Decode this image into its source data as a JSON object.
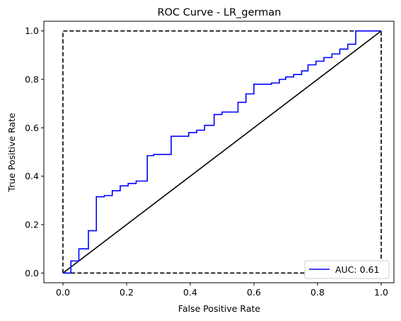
{
  "chart_data": {
    "type": "line",
    "title": "ROC Curve - LR_german",
    "xlabel": "False Positive Rate",
    "ylabel": "True Positive Rate",
    "xlim": [
      -0.06,
      1.04
    ],
    "ylim": [
      -0.04,
      1.04
    ],
    "x_ticks": [
      0.0,
      0.2,
      0.4,
      0.6,
      0.8,
      1.0
    ],
    "y_ticks": [
      0.0,
      0.2,
      0.4,
      0.6,
      0.8,
      1.0
    ],
    "x_tick_labels": [
      "0.0",
      "0.2",
      "0.4",
      "0.6",
      "0.8",
      "1.0"
    ],
    "y_tick_labels": [
      "0.0",
      "0.2",
      "0.4",
      "0.6",
      "0.8",
      "1.0"
    ],
    "grid": false,
    "legend_position": "lower right",
    "series": [
      {
        "name": "AUC: 0.61",
        "color": "#0000ff",
        "style": "solid",
        "x": [
          0.0,
          0.025,
          0.025,
          0.05,
          0.05,
          0.08,
          0.08,
          0.105,
          0.105,
          0.13,
          0.13,
          0.155,
          0.155,
          0.18,
          0.18,
          0.205,
          0.205,
          0.23,
          0.23,
          0.265,
          0.265,
          0.285,
          0.285,
          0.34,
          0.34,
          0.395,
          0.395,
          0.42,
          0.42,
          0.445,
          0.445,
          0.475,
          0.475,
          0.5,
          0.5,
          0.55,
          0.55,
          0.575,
          0.575,
          0.6,
          0.6,
          0.655,
          0.655,
          0.68,
          0.68,
          0.7,
          0.7,
          0.725,
          0.725,
          0.75,
          0.75,
          0.77,
          0.77,
          0.795,
          0.795,
          0.82,
          0.82,
          0.845,
          0.845,
          0.87,
          0.87,
          0.895,
          0.895,
          0.92,
          0.92,
          1.0
        ],
        "y": [
          0.0,
          0.0,
          0.05,
          0.05,
          0.1,
          0.1,
          0.175,
          0.175,
          0.315,
          0.315,
          0.32,
          0.32,
          0.34,
          0.34,
          0.36,
          0.36,
          0.37,
          0.37,
          0.38,
          0.38,
          0.485,
          0.485,
          0.49,
          0.49,
          0.565,
          0.565,
          0.58,
          0.58,
          0.59,
          0.59,
          0.61,
          0.61,
          0.655,
          0.655,
          0.665,
          0.665,
          0.705,
          0.705,
          0.74,
          0.74,
          0.78,
          0.78,
          0.785,
          0.785,
          0.8,
          0.8,
          0.81,
          0.81,
          0.82,
          0.82,
          0.835,
          0.835,
          0.86,
          0.86,
          0.875,
          0.875,
          0.89,
          0.89,
          0.905,
          0.905,
          0.925,
          0.925,
          0.945,
          0.945,
          1.0,
          1.0
        ]
      },
      {
        "name": "",
        "color": "#000000",
        "style": "solid",
        "x": [
          0.0,
          1.0
        ],
        "y": [
          0.0,
          1.0
        ]
      },
      {
        "name": "",
        "color": "#000000",
        "style": "dashed",
        "x": [
          0.0,
          0.0,
          1.0,
          1.0,
          0.0
        ],
        "y": [
          0.0,
          1.0,
          1.0,
          0.0,
          0.0
        ]
      }
    ]
  }
}
